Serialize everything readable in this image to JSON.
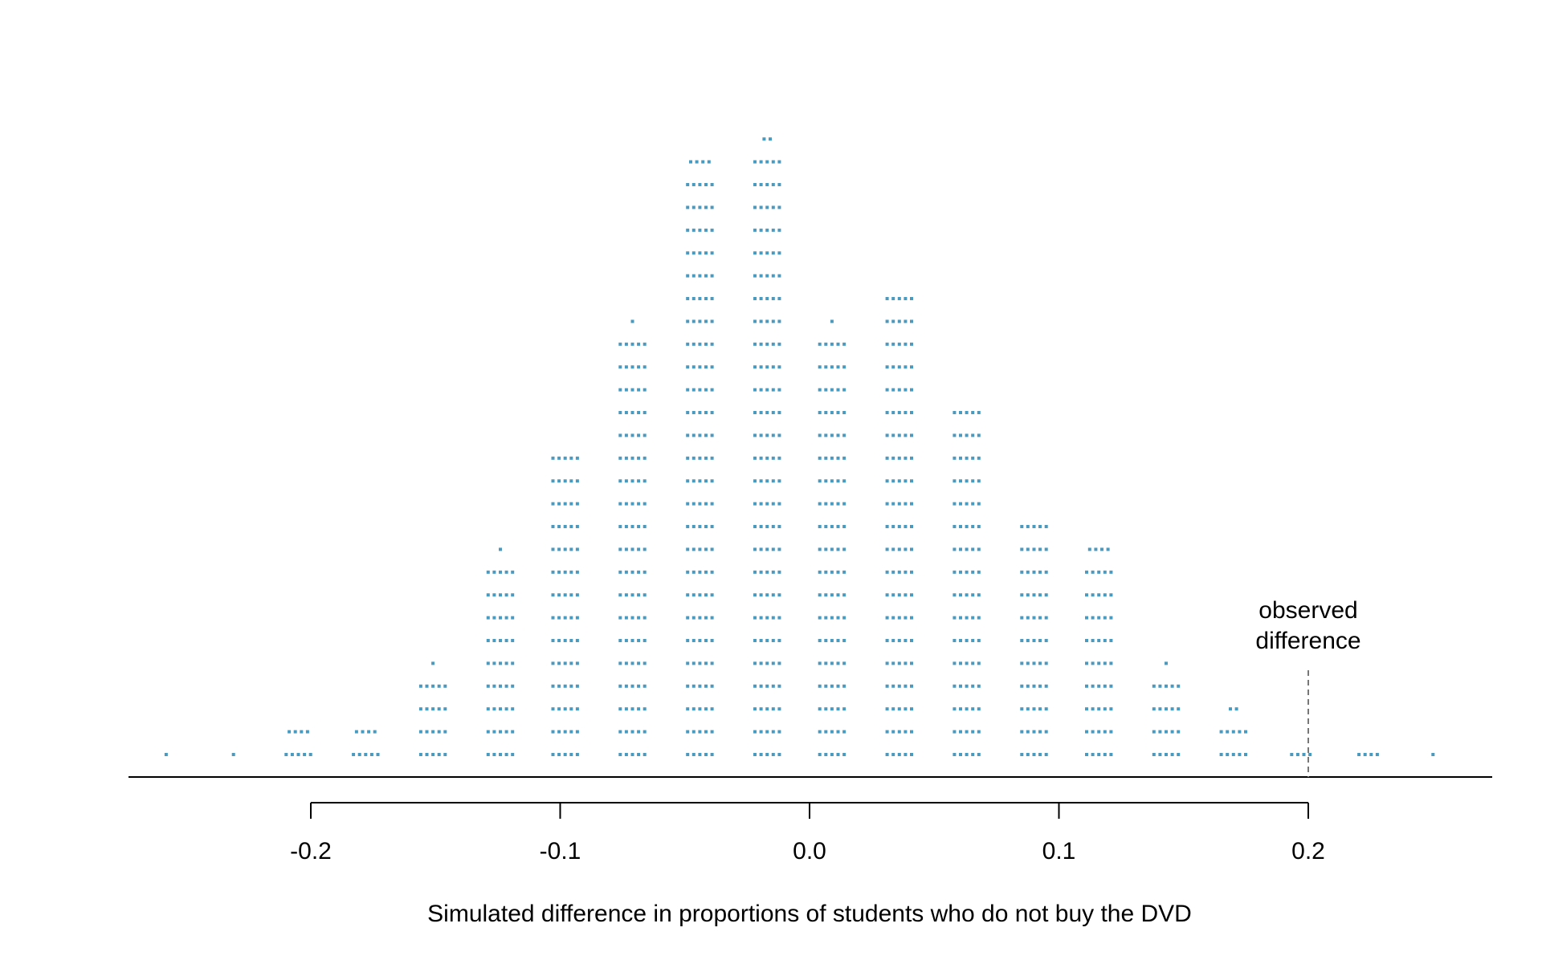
{
  "chart_data": {
    "type": "scatter",
    "style": "dot plot (stacked dots)",
    "xlabel": "Simulated difference in proportions of students who do not buy the DVD",
    "ylabel": "",
    "xlim": [
      -0.2,
      0.2
    ],
    "xticks": [
      -0.2,
      -0.1,
      0.0,
      0.1,
      0.2
    ],
    "tick_labels": [
      "-0.2",
      "-0.1",
      "0.0",
      "0.1",
      "0.2"
    ],
    "grid": false,
    "legend": "none",
    "dot_color": "#4a9ac0",
    "annotation": {
      "lines": [
        "observed",
        "difference"
      ],
      "x": 0.2
    },
    "bins": [
      {
        "x": -0.258,
        "count": 1
      },
      {
        "x": -0.231,
        "count": 1
      },
      {
        "x": -0.205,
        "count": 9
      },
      {
        "x": -0.178,
        "count": 9
      },
      {
        "x": -0.151,
        "count": 21
      },
      {
        "x": -0.124,
        "count": 46
      },
      {
        "x": -0.098,
        "count": 70
      },
      {
        "x": -0.071,
        "count": 96
      },
      {
        "x": -0.044,
        "count": 134
      },
      {
        "x": -0.017,
        "count": 137
      },
      {
        "x": 0.009,
        "count": 96
      },
      {
        "x": 0.036,
        "count": 105
      },
      {
        "x": 0.063,
        "count": 80
      },
      {
        "x": 0.09,
        "count": 55
      },
      {
        "x": 0.116,
        "count": 49
      },
      {
        "x": 0.143,
        "count": 21
      },
      {
        "x": 0.17,
        "count": 12
      },
      {
        "x": 0.197,
        "count": 4
      },
      {
        "x": 0.224,
        "count": 4
      },
      {
        "x": 0.25,
        "count": 1
      }
    ]
  }
}
